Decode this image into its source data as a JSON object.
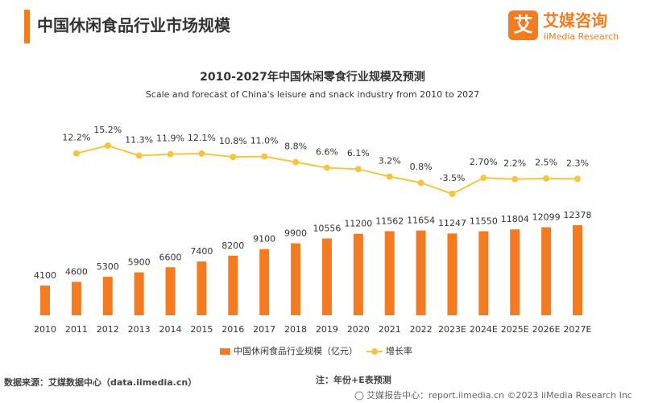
{
  "header": {
    "title": "中国休闲食品行业市场规模",
    "logo_icon": "艾",
    "logo_cn": "艾媒咨询",
    "logo_en": "iiMedia Research"
  },
  "chart_data": {
    "type": "bar",
    "title": "2010-2027年中国休闲零食行业规模及预测",
    "subtitle": "Scale and forecast of China's leisure and snack industry from 2010 to 2027",
    "categories": [
      "2010",
      "2011",
      "2012",
      "2013",
      "2014",
      "2015",
      "2016",
      "2017",
      "2018",
      "2019",
      "2020",
      "2021",
      "2022",
      "2023E",
      "2024E",
      "2025E",
      "2026E",
      "2027E"
    ],
    "series": [
      {
        "name": "中国休闲食品行业规模（亿元）",
        "color": "#f47b20",
        "type": "bar",
        "values": [
          4100,
          4600,
          5300,
          5900,
          6600,
          7400,
          8200,
          9100,
          9900,
          10556,
          11200,
          11562,
          11654,
          11247,
          11550,
          11804,
          12099,
          12378
        ]
      },
      {
        "name": "增长率",
        "color": "#f5c542",
        "type": "line",
        "values": [
          null,
          12.2,
          15.2,
          11.3,
          11.9,
          12.1,
          10.8,
          11.0,
          8.8,
          6.6,
          6.1,
          3.2,
          0.8,
          -3.5,
          2.7,
          2.2,
          2.5,
          2.3
        ],
        "value_labels": [
          null,
          "12.2%",
          "15.2%",
          "11.3%",
          "11.9%",
          "12.1%",
          "10.8%",
          "11.0%",
          "8.8%",
          "6.6%",
          "6.1%",
          "3.2%",
          "0.8%",
          "-3.5%",
          "2.70%",
          "2.2%",
          "2.5%",
          "2.3%"
        ]
      }
    ]
  },
  "footer": {
    "source": "数据来源：艾媒数据中心（data.iimedia.cn）",
    "note": "注：年份+E表预测",
    "copyright": "艾媒报告中心：report.iimedia.cn  ©2023  iiMedia Research  Inc"
  }
}
